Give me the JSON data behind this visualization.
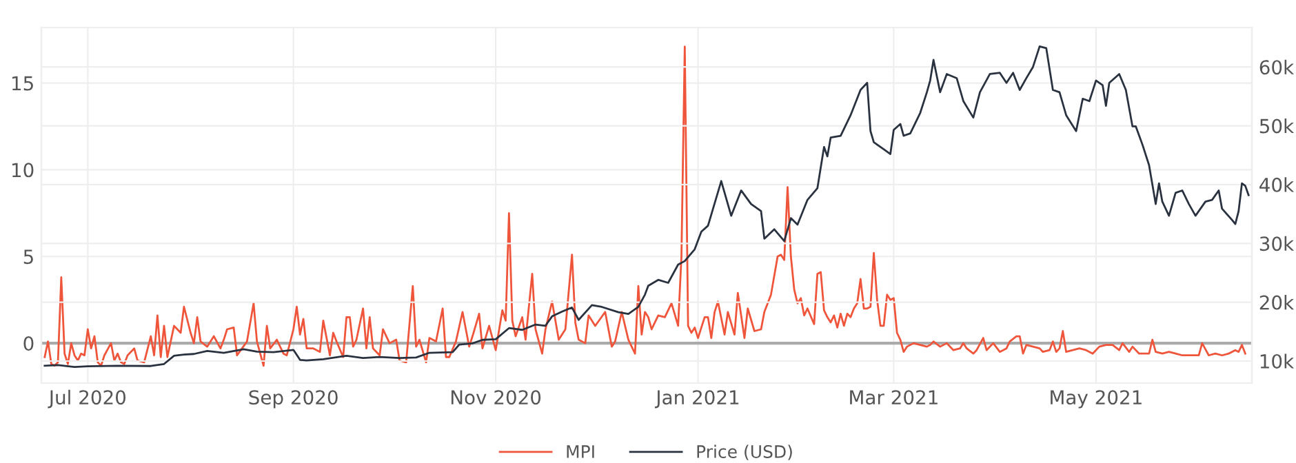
{
  "chart_data": {
    "type": "line",
    "xlim": [
      "2020-06-17",
      "2021-06-17"
    ],
    "xticks": [
      {
        "value": "2020-07-01",
        "label": "Jul 2020"
      },
      {
        "value": "2020-09-01",
        "label": "Sep 2020"
      },
      {
        "value": "2020-11-01",
        "label": "Nov 2020"
      },
      {
        "value": "2021-01-01",
        "label": "Jan 2021"
      },
      {
        "value": "2021-03-01",
        "label": "Mar 2021"
      },
      {
        "value": "2021-05-01",
        "label": "May 2021"
      }
    ],
    "ylim": [
      -2.3,
      18.2
    ],
    "yticks": [
      0,
      5,
      10,
      15
    ],
    "y2lim": [
      6250,
      66700
    ],
    "y2ticks": [
      {
        "value": 10000,
        "label": "10k"
      },
      {
        "value": 20000,
        "label": "20k"
      },
      {
        "value": 30000,
        "label": "30k"
      },
      {
        "value": 40000,
        "label": "40k"
      },
      {
        "value": 50000,
        "label": "50k"
      },
      {
        "value": 60000,
        "label": "60k"
      }
    ],
    "grid": true,
    "legend": "bottom",
    "marker": "none",
    "line_style": "solid",
    "ref_lines": [
      {
        "axis": "y",
        "value": 0,
        "color": "#aaaaaa"
      }
    ],
    "series": [
      {
        "name": "MPI",
        "color": "#ef553b",
        "x": [
          "2020-06-18",
          "2020-06-19",
          "2020-06-20",
          "2020-06-21",
          "2020-06-22",
          "2020-06-23",
          "2020-06-24",
          "2020-06-25",
          "2020-06-26",
          "2020-06-27",
          "2020-06-28",
          "2020-06-29",
          "2020-06-30",
          "2020-07-01",
          "2020-07-02",
          "2020-07-03",
          "2020-07-04",
          "2020-07-05",
          "2020-07-06",
          "2020-07-08",
          "2020-07-09",
          "2020-07-10",
          "2020-07-11",
          "2020-07-12",
          "2020-07-13",
          "2020-07-15",
          "2020-07-16",
          "2020-07-18",
          "2020-07-20",
          "2020-07-21",
          "2020-07-22",
          "2020-07-23",
          "2020-07-24",
          "2020-07-25",
          "2020-07-27",
          "2020-07-29",
          "2020-07-30",
          "2020-08-01",
          "2020-08-02",
          "2020-08-03",
          "2020-08-04",
          "2020-08-06",
          "2020-08-08",
          "2020-08-10",
          "2020-08-11",
          "2020-08-12",
          "2020-08-14",
          "2020-08-15",
          "2020-08-18",
          "2020-08-20",
          "2020-08-21",
          "2020-08-23",
          "2020-08-24",
          "2020-08-25",
          "2020-08-27",
          "2020-08-29",
          "2020-08-30",
          "2020-09-01",
          "2020-09-02",
          "2020-09-03",
          "2020-09-04",
          "2020-09-05",
          "2020-09-07",
          "2020-09-09",
          "2020-09-10",
          "2020-09-12",
          "2020-09-13",
          "2020-09-14",
          "2020-09-16",
          "2020-09-17",
          "2020-09-18",
          "2020-09-19",
          "2020-09-20",
          "2020-09-22",
          "2020-09-23",
          "2020-09-24",
          "2020-09-25",
          "2020-09-27",
          "2020-09-28",
          "2020-09-30",
          "2020-10-02",
          "2020-10-03",
          "2020-10-05",
          "2020-10-07",
          "2020-10-08",
          "2020-10-09",
          "2020-10-11",
          "2020-10-12",
          "2020-10-14",
          "2020-10-16",
          "2020-10-17",
          "2020-10-18",
          "2020-10-20",
          "2020-10-22",
          "2020-10-24",
          "2020-10-25",
          "2020-10-27",
          "2020-10-28",
          "2020-10-30",
          "2020-11-01",
          "2020-11-03",
          "2020-11-04",
          "2020-11-05",
          "2020-11-06",
          "2020-11-07",
          "2020-11-09",
          "2020-11-10",
          "2020-11-12",
          "2020-11-13",
          "2020-11-15",
          "2020-11-16",
          "2020-11-18",
          "2020-11-20",
          "2020-11-22",
          "2020-11-24",
          "2020-11-25",
          "2020-11-26",
          "2020-11-28",
          "2020-11-29",
          "2020-12-01",
          "2020-12-04",
          "2020-12-06",
          "2020-12-07",
          "2020-12-09",
          "2020-12-11",
          "2020-12-13",
          "2020-12-14",
          "2020-12-15",
          "2020-12-16",
          "2020-12-17",
          "2020-12-18",
          "2020-12-20",
          "2020-12-22",
          "2020-12-24",
          "2020-12-26",
          "2020-12-27",
          "2020-12-28",
          "2020-12-29",
          "2020-12-30",
          "2020-12-31",
          "2021-01-01",
          "2021-01-03",
          "2021-01-04",
          "2021-01-05",
          "2021-01-06",
          "2021-01-07",
          "2021-01-09",
          "2021-01-10",
          "2021-01-12",
          "2021-01-13",
          "2021-01-15",
          "2021-01-16",
          "2021-01-18",
          "2021-01-20",
          "2021-01-21",
          "2021-01-23",
          "2021-01-25",
          "2021-01-26",
          "2021-01-27",
          "2021-01-28",
          "2021-01-29",
          "2021-01-30",
          "2021-01-31",
          "2021-02-01",
          "2021-02-02",
          "2021-02-03",
          "2021-02-05",
          "2021-02-06",
          "2021-02-07",
          "2021-02-08",
          "2021-02-09",
          "2021-02-10",
          "2021-02-11",
          "2021-02-12",
          "2021-02-13",
          "2021-02-14",
          "2021-02-15",
          "2021-02-16",
          "2021-02-17",
          "2021-02-18",
          "2021-02-19",
          "2021-02-20",
          "2021-02-21",
          "2021-02-22",
          "2021-02-23",
          "2021-02-24",
          "2021-02-25",
          "2021-02-26",
          "2021-02-27",
          "2021-02-28",
          "2021-03-01",
          "2021-03-02",
          "2021-03-03",
          "2021-03-04",
          "2021-03-05",
          "2021-03-07",
          "2021-03-09",
          "2021-03-11",
          "2021-03-12",
          "2021-03-13",
          "2021-03-15",
          "2021-03-17",
          "2021-03-19",
          "2021-03-21",
          "2021-03-22",
          "2021-03-23",
          "2021-03-25",
          "2021-03-26",
          "2021-03-28",
          "2021-03-29",
          "2021-03-31",
          "2021-04-02",
          "2021-04-04",
          "2021-04-05",
          "2021-04-07",
          "2021-04-08",
          "2021-04-09",
          "2021-04-10",
          "2021-04-12",
          "2021-04-14",
          "2021-04-15",
          "2021-04-17",
          "2021-04-18",
          "2021-04-19",
          "2021-04-20",
          "2021-04-21",
          "2021-04-22",
          "2021-04-24",
          "2021-04-26",
          "2021-04-28",
          "2021-04-30",
          "2021-05-02",
          "2021-05-04",
          "2021-05-06",
          "2021-05-08",
          "2021-05-09",
          "2021-05-11",
          "2021-05-12",
          "2021-05-14",
          "2021-05-16",
          "2021-05-17",
          "2021-05-18",
          "2021-05-19",
          "2021-05-21",
          "2021-05-23",
          "2021-05-25",
          "2021-05-27",
          "2021-05-29",
          "2021-06-01",
          "2021-06-02",
          "2021-06-04",
          "2021-06-06",
          "2021-06-08",
          "2021-06-10",
          "2021-06-12",
          "2021-06-13",
          "2021-06-14",
          "2021-06-15"
        ],
        "values": [
          -0.8,
          0.1,
          -1.2,
          -1.3,
          -1.1,
          3.8,
          -0.6,
          -1.2,
          0,
          -0.7,
          -1.0,
          -0.6,
          -0.7,
          0.8,
          -0.3,
          0.4,
          -1.1,
          -1.3,
          -0.7,
          0,
          -1.0,
          -0.6,
          -1.1,
          -1.2,
          -0.7,
          -0.3,
          -1.0,
          -1.1,
          0.4,
          -0.7,
          1.6,
          -0.8,
          1.0,
          -0.8,
          1.0,
          0.6,
          2.1,
          0.6,
          0,
          1.5,
          0.1,
          -0.2,
          0.4,
          -0.3,
          0.2,
          0.8,
          0.9,
          -0.7,
          0.1,
          2.3,
          0.1,
          -1.3,
          1.0,
          -0.3,
          0.2,
          -0.6,
          -0.7,
          0.8,
          2.1,
          0.5,
          1.4,
          -0.3,
          -0.3,
          -0.5,
          1.3,
          -0.7,
          0.6,
          0.1,
          -0.8,
          1.5,
          1.5,
          -0.2,
          0.2,
          2.0,
          -0.3,
          1.5,
          -0.3,
          -0.7,
          0.8,
          0,
          0.2,
          -1.0,
          -1.1,
          3.3,
          -0.2,
          0.2,
          -1.1,
          0.3,
          0.1,
          2.0,
          -0.8,
          -0.8,
          0.1,
          1.8,
          -0.2,
          0.4,
          1.7,
          -0.3,
          1.0,
          -0.4,
          1.9,
          1.3,
          7.5,
          1.3,
          0.4,
          1.5,
          0.2,
          4.0,
          0.8,
          -0.6,
          0.8,
          2.4,
          0.2,
          0.8,
          5.1,
          1.2,
          0.2,
          0,
          1.6,
          1.0,
          1.8,
          -0.2,
          0.1,
          1.8,
          0.2,
          -0.6,
          3.3,
          0.5,
          1.8,
          1.5,
          0.8,
          1.6,
          1.5,
          2.3,
          1.0,
          5.0,
          17.1,
          1.0,
          0.6,
          0.9,
          0.3,
          1.5,
          1.5,
          0.3,
          1.8,
          2.4,
          0.5,
          1.8,
          0.5,
          2.9,
          0.3,
          2.0,
          0.7,
          0.8,
          1.8,
          2.8,
          5.0,
          5.1,
          4.8,
          9.0,
          5.0,
          3.1,
          2.3,
          2.6,
          1.6,
          2.0,
          1.1,
          4.0,
          4.1,
          1.9,
          1.5,
          1.2,
          1.6,
          0.9,
          1.7,
          1.0,
          1.7,
          1.5,
          2.0,
          2.3,
          3.7,
          2.0,
          2.0,
          2.1,
          5.2,
          2.5,
          1.0,
          1.0,
          2.8,
          2.5,
          2.6,
          0.6,
          0.2,
          -0.5,
          -0.2,
          0,
          -0.1,
          -0.2,
          -0.1,
          0.1,
          -0.2,
          0,
          -0.4,
          -0.3,
          0,
          -0.3,
          -0.6,
          -0.4,
          0.3,
          -0.4,
          0,
          -0.5,
          -0.3,
          0.1,
          0.4,
          0.4,
          -0.6,
          -0.1,
          -0.2,
          -0.3,
          -0.5,
          -0.4,
          0.1,
          -0.5,
          -0.3,
          0.7,
          -0.5,
          -0.4,
          -0.3,
          -0.4,
          -0.6,
          -0.2,
          -0.1,
          -0.1,
          -0.4,
          0,
          -0.5,
          -0.2,
          -0.6,
          -0.6,
          -0.6,
          0.2,
          -0.5,
          -0.6,
          -0.5,
          -0.6,
          -0.7,
          -0.7,
          -0.7,
          0,
          -0.7,
          -0.6,
          -0.7,
          -0.6,
          -0.4,
          -0.5,
          -0.1,
          -0.6
        ]
      },
      {
        "name": "Price (USD)",
        "color": "#2a3240",
        "axis": "y2",
        "x": [
          "2020-06-18",
          "2020-06-22",
          "2020-06-27",
          "2020-07-01",
          "2020-07-10",
          "2020-07-20",
          "2020-07-24",
          "2020-07-27",
          "2020-07-30",
          "2020-08-02",
          "2020-08-06",
          "2020-08-11",
          "2020-08-17",
          "2020-08-21",
          "2020-08-26",
          "2020-09-01",
          "2020-09-03",
          "2020-09-05",
          "2020-09-10",
          "2020-09-17",
          "2020-09-22",
          "2020-09-27",
          "2020-10-03",
          "2020-10-08",
          "2020-10-12",
          "2020-10-19",
          "2020-10-21",
          "2020-10-25",
          "2020-10-28",
          "2020-11-01",
          "2020-11-05",
          "2020-11-09",
          "2020-11-13",
          "2020-11-16",
          "2020-11-18",
          "2020-11-21",
          "2020-11-24",
          "2020-11-26",
          "2020-11-30",
          "2020-12-03",
          "2020-12-08",
          "2020-12-11",
          "2020-12-14",
          "2020-12-16",
          "2020-12-17",
          "2020-12-20",
          "2020-12-23",
          "2020-12-26",
          "2020-12-28",
          "2020-12-31",
          "2021-01-02",
          "2021-01-04",
          "2021-01-08",
          "2021-01-11",
          "2021-01-14",
          "2021-01-17",
          "2021-01-20",
          "2021-01-21",
          "2021-01-24",
          "2021-01-27",
          "2021-01-29",
          "2021-01-31",
          "2021-02-03",
          "2021-02-06",
          "2021-02-08",
          "2021-02-09",
          "2021-02-10",
          "2021-02-13",
          "2021-02-16",
          "2021-02-19",
          "2021-02-21",
          "2021-02-22",
          "2021-02-23",
          "2021-02-26",
          "2021-02-28",
          "2021-03-01",
          "2021-03-03",
          "2021-03-04",
          "2021-03-06",
          "2021-03-09",
          "2021-03-11",
          "2021-03-12",
          "2021-03-13",
          "2021-03-15",
          "2021-03-17",
          "2021-03-20",
          "2021-03-22",
          "2021-03-25",
          "2021-03-27",
          "2021-03-30",
          "2021-04-02",
          "2021-04-04",
          "2021-04-06",
          "2021-04-08",
          "2021-04-10",
          "2021-04-12",
          "2021-04-14",
          "2021-04-16",
          "2021-04-18",
          "2021-04-20",
          "2021-04-22",
          "2021-04-25",
          "2021-04-27",
          "2021-04-29",
          "2021-05-01",
          "2021-05-03",
          "2021-05-04",
          "2021-05-05",
          "2021-05-08",
          "2021-05-10",
          "2021-05-12",
          "2021-05-13",
          "2021-05-15",
          "2021-05-17",
          "2021-05-19",
          "2021-05-20",
          "2021-05-21",
          "2021-05-23",
          "2021-05-25",
          "2021-05-27",
          "2021-05-29",
          "2021-05-31",
          "2021-06-03",
          "2021-06-05",
          "2021-06-07",
          "2021-06-08",
          "2021-06-11",
          "2021-06-12",
          "2021-06-13",
          "2021-06-14",
          "2021-06-15",
          "2021-06-16"
        ],
        "values": [
          9200,
          9300,
          9000,
          9100,
          9200,
          9150,
          9500,
          10900,
          11100,
          11200,
          11700,
          11400,
          12000,
          11600,
          11500,
          11900,
          10200,
          10100,
          10300,
          10900,
          10500,
          10700,
          10500,
          10600,
          11400,
          11500,
          12800,
          13000,
          13600,
          13700,
          15600,
          15300,
          16200,
          16000,
          17600,
          18400,
          19100,
          17000,
          19500,
          19200,
          18300,
          18000,
          19200,
          21300,
          22800,
          23800,
          23300,
          26400,
          27000,
          29000,
          32000,
          33000,
          40600,
          34700,
          39000,
          36700,
          35500,
          30800,
          32400,
          30400,
          34300,
          33200,
          37400,
          39400,
          46400,
          44800,
          48000,
          48300,
          51800,
          56100,
          57300,
          49100,
          47200,
          46000,
          45200,
          49300,
          50300,
          48300,
          48700,
          52200,
          55700,
          57700,
          61200,
          55700,
          58800,
          58100,
          54200,
          51400,
          55700,
          58800,
          59000,
          57300,
          59000,
          56100,
          58100,
          60000,
          63500,
          63200,
          56100,
          55700,
          51800,
          49100,
          54600,
          54200,
          57700,
          56900,
          53400,
          57300,
          58800,
          56100,
          49900,
          49900,
          46800,
          43300,
          36700,
          40200,
          37100,
          34700,
          38600,
          39000,
          36700,
          34700,
          37100,
          37400,
          39000,
          35900,
          34000,
          33300,
          35500,
          40200,
          39800,
          38200
        ]
      }
    ]
  }
}
